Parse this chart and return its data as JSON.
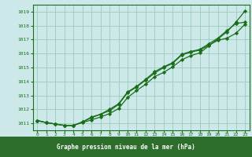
{
  "x": [
    0,
    1,
    2,
    3,
    4,
    5,
    6,
    7,
    8,
    9,
    10,
    11,
    12,
    13,
    14,
    15,
    16,
    17,
    18,
    19,
    20,
    21,
    22,
    23
  ],
  "line1": [
    1011.2,
    1011.05,
    1010.95,
    1010.85,
    1010.85,
    1011.05,
    1011.25,
    1011.45,
    1011.7,
    1012.05,
    1012.85,
    1013.35,
    1013.8,
    1014.35,
    1014.65,
    1015.05,
    1015.55,
    1015.85,
    1016.05,
    1016.55,
    1017.05,
    1017.55,
    1018.25,
    1019.05
  ],
  "line2": [
    1011.2,
    1011.05,
    1010.95,
    1010.85,
    1010.85,
    1011.1,
    1011.4,
    1011.65,
    1011.9,
    1012.35,
    1013.2,
    1013.6,
    1014.1,
    1014.6,
    1015.0,
    1015.3,
    1015.9,
    1016.1,
    1016.25,
    1016.6,
    1016.95,
    1017.1,
    1017.45,
    1018.1
  ],
  "line3": [
    1011.2,
    1011.05,
    1010.95,
    1010.85,
    1010.85,
    1011.1,
    1011.45,
    1011.65,
    1012.0,
    1012.4,
    1013.25,
    1013.65,
    1014.15,
    1014.7,
    1015.05,
    1015.35,
    1015.95,
    1016.15,
    1016.3,
    1016.7,
    1017.1,
    1017.65,
    1018.15,
    1018.25
  ],
  "ylim": [
    1010.5,
    1019.5
  ],
  "yticks": [
    1011,
    1012,
    1013,
    1014,
    1015,
    1016,
    1017,
    1018,
    1019
  ],
  "xticks": [
    0,
    1,
    2,
    3,
    4,
    5,
    6,
    7,
    8,
    9,
    10,
    11,
    12,
    13,
    14,
    15,
    16,
    17,
    18,
    19,
    20,
    21,
    22,
    23
  ],
  "xlabel": "Graphe pression niveau de la mer (hPa)",
  "line_color": "#1a6e1a",
  "bg_color": "#cce8e8",
  "grid_color": "#99ccbb",
  "xlabel_bg": "#2d6e2d",
  "xlabel_color": "#ffffff",
  "marker": "D",
  "markersize": 2.2,
  "linewidth": 0.9
}
